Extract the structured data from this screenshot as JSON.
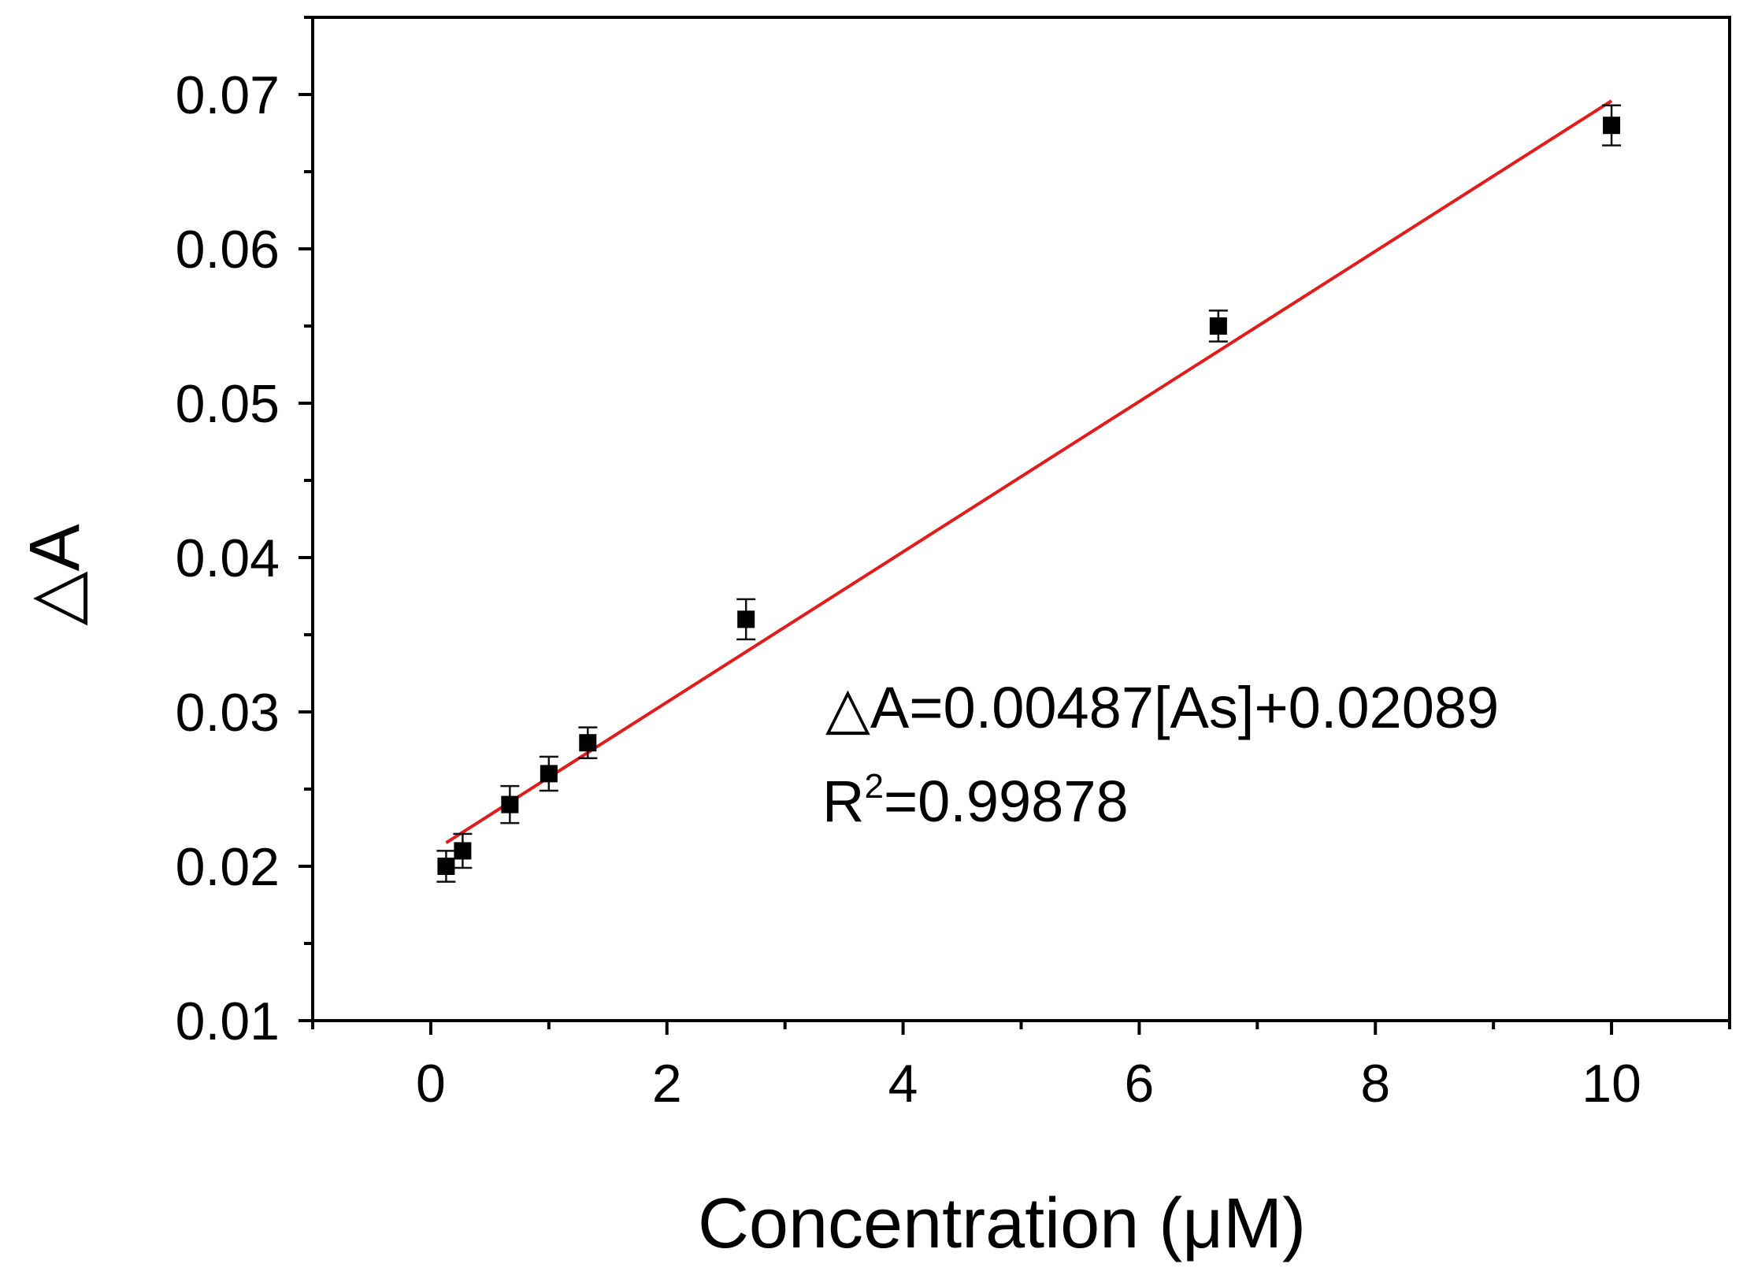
{
  "chart_data": {
    "type": "scatter",
    "xlabel": "Concentration (μM)",
    "ylabel": "△A",
    "xlim": [
      -1,
      11
    ],
    "ylim": [
      0.01,
      0.075
    ],
    "x_ticks": [
      0,
      2,
      4,
      6,
      8,
      10
    ],
    "x_tick_labels": [
      "0",
      "2",
      "4",
      "6",
      "8",
      "10"
    ],
    "y_ticks": [
      0.01,
      0.02,
      0.03,
      0.04,
      0.05,
      0.06,
      0.07
    ],
    "y_tick_labels": [
      "0.01",
      "0.02",
      "0.03",
      "0.04",
      "0.05",
      "0.06",
      "0.07"
    ],
    "grid": false,
    "series": [
      {
        "marker": "square",
        "color": "#000000",
        "points": [
          {
            "x": 0.13,
            "y": 0.02,
            "err": 0.001
          },
          {
            "x": 0.27,
            "y": 0.021,
            "err": 0.0011
          },
          {
            "x": 0.67,
            "y": 0.024,
            "err": 0.0012
          },
          {
            "x": 1.0,
            "y": 0.026,
            "err": 0.0011
          },
          {
            "x": 1.33,
            "y": 0.028,
            "err": 0.001
          },
          {
            "x": 2.67,
            "y": 0.036,
            "err": 0.0013
          },
          {
            "x": 6.67,
            "y": 0.055,
            "err": 0.001
          },
          {
            "x": 10.0,
            "y": 0.068,
            "err": 0.0013
          }
        ]
      }
    ],
    "fit": {
      "color": "#e31b1b",
      "slope": 0.00487,
      "intercept": 0.02089,
      "x_range": [
        0.13,
        10.0
      ]
    },
    "annotation": {
      "equation": "△A=0.00487[As]+0.02089",
      "r2_prefix": "R",
      "r2_sup": "2",
      "r2_value": "=0.99878"
    }
  }
}
